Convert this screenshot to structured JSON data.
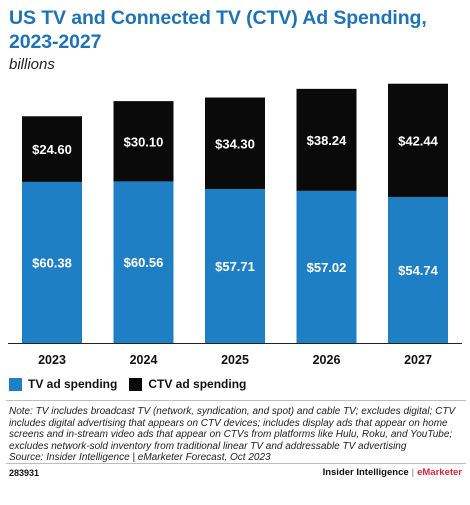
{
  "title": "US TV and Connected TV (CTV) Ad Spending, 2023-2027",
  "subtitle": "billions",
  "colors": {
    "tv": "#1f7fc4",
    "ctv": "#0a0a0a",
    "title": "#1f73b4",
    "brand_accent": "#d7263d"
  },
  "chart_data": {
    "type": "bar",
    "stacked": true,
    "categories": [
      "2023",
      "2024",
      "2025",
      "2026",
      "2027"
    ],
    "series": [
      {
        "name": "TV ad spending",
        "values": [
          60.38,
          60.56,
          57.71,
          57.02,
          54.74
        ],
        "labels": [
          "$60.38",
          "$60.56",
          "$57.71",
          "$57.02",
          "$54.74"
        ]
      },
      {
        "name": "CTV ad spending",
        "values": [
          24.6,
          30.1,
          34.3,
          38.24,
          42.44
        ],
        "labels": [
          "$24.60",
          "$30.10",
          "$34.30",
          "$38.24",
          "$42.44"
        ]
      }
    ],
    "grid": false,
    "legend_position": "bottom-left"
  },
  "legend": {
    "tv": "TV ad spending",
    "ctv": "CTV ad spending"
  },
  "note": "Note: TV includes broadcast TV (network, syndication, and spot) and cable TV; excludes digital; CTV includes digital advertising that appears on CTV devices; includes display ads that appear on home screens and in-stream video ads that appear on CTVs from platforms like Hulu, Roku, and YouTube; excludes network-sold inventory from traditional linear TV and addressable TV advertising",
  "source": "Source: Insider Intelligence | eMarketer Forecast, Oct 2023",
  "footer": {
    "id": "283931",
    "brand_main": "Insider Intelligence",
    "brand_sep": "|",
    "brand_accent": "eMarketer"
  }
}
